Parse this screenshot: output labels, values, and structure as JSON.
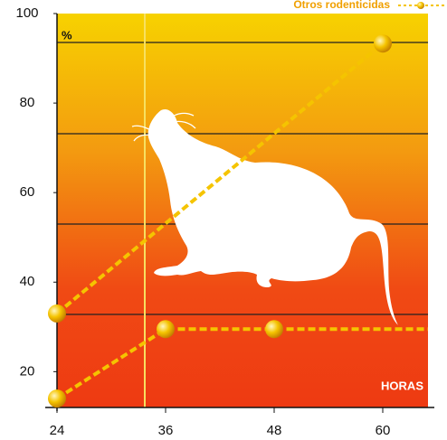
{
  "chart_data": {
    "type": "line",
    "y_unit_label": "%",
    "x_label": "HORAS",
    "xlim": [
      24,
      65
    ],
    "xticks": [
      24,
      36,
      48,
      60
    ],
    "ylim": [
      12,
      100
    ],
    "yticks": [
      20,
      40,
      60,
      80,
      100
    ],
    "legend_position": "top-right",
    "series": [
      {
        "color": "#f5c400",
        "x": [
          24,
          36,
          48,
          65
        ],
        "values": [
          14,
          29.5,
          29.5,
          29.5
        ]
      },
      {
        "name": "Otros rodenticidas",
        "color": "#f5c400",
        "x": [
          24,
          60
        ],
        "values": [
          33,
          93.3
        ]
      }
    ]
  }
}
